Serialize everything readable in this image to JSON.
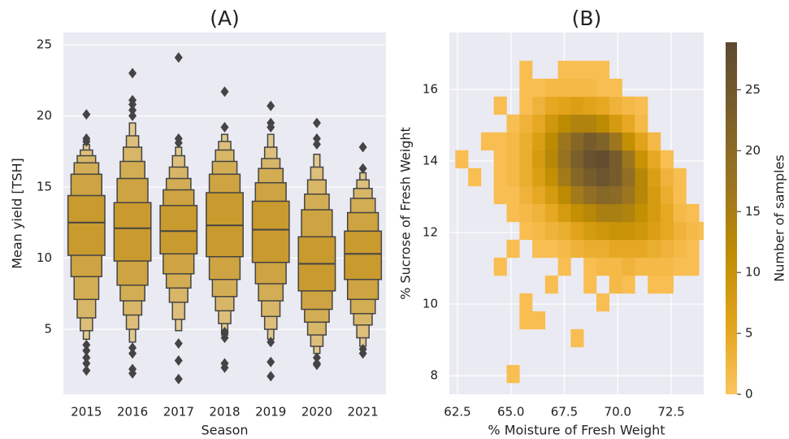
{
  "chart_data": [
    {
      "type": "boxen",
      "title": "(A)",
      "xlabel": "Season",
      "ylabel": "Mean yield [TSH]",
      "categories": [
        "2015",
        "2016",
        "2017",
        "2018",
        "2019",
        "2020",
        "2021"
      ],
      "medians": [
        12.5,
        12.1,
        11.9,
        12.3,
        12.0,
        9.6,
        10.3
      ],
      "boxes": [
        [
          [
            10.2,
            14.4
          ],
          [
            8.7,
            15.9
          ],
          [
            7.1,
            16.7
          ],
          [
            5.8,
            17.2
          ],
          [
            4.9,
            17.6
          ],
          [
            4.3,
            18.0
          ]
        ],
        [
          [
            9.8,
            13.9
          ],
          [
            8.1,
            15.6
          ],
          [
            7.0,
            16.8
          ],
          [
            6.0,
            17.8
          ],
          [
            5.0,
            18.6
          ],
          [
            4.1,
            19.5
          ]
        ],
        [
          [
            10.3,
            13.7
          ],
          [
            8.9,
            14.8
          ],
          [
            7.9,
            15.6
          ],
          [
            6.9,
            16.4
          ],
          [
            5.7,
            17.2
          ],
          [
            4.9,
            17.8
          ]
        ],
        [
          [
            10.1,
            14.6
          ],
          [
            8.5,
            15.9
          ],
          [
            7.3,
            16.8
          ],
          [
            6.3,
            17.6
          ],
          [
            5.4,
            18.2
          ],
          [
            4.6,
            18.7
          ]
        ],
        [
          [
            9.7,
            14.0
          ],
          [
            8.2,
            15.3
          ],
          [
            7.0,
            16.3
          ],
          [
            5.9,
            17.0
          ],
          [
            5.0,
            17.8
          ],
          [
            4.3,
            18.7
          ]
        ],
        [
          [
            7.7,
            11.5
          ],
          [
            6.4,
            13.4
          ],
          [
            5.5,
            14.5
          ],
          [
            4.6,
            15.5
          ],
          [
            3.8,
            16.4
          ],
          [
            3.3,
            17.3
          ]
        ],
        [
          [
            8.5,
            11.9
          ],
          [
            7.1,
            13.2
          ],
          [
            6.1,
            14.2
          ],
          [
            5.3,
            14.9
          ],
          [
            4.4,
            15.5
          ],
          [
            3.8,
            16.0
          ]
        ]
      ],
      "outliers": [
        [
          20.1,
          18.4,
          18.2,
          3.9,
          3.5,
          3.0,
          2.6,
          2.1
        ],
        [
          23.0,
          21.1,
          20.8,
          20.4,
          20.0,
          3.7,
          3.3,
          2.2,
          1.9
        ],
        [
          24.1,
          18.4,
          18.1,
          4.0,
          2.8,
          1.5
        ],
        [
          21.7,
          19.2,
          4.8,
          4.4,
          2.6,
          2.3
        ],
        [
          20.7,
          19.5,
          19.2,
          4.1,
          2.7,
          1.7
        ],
        [
          19.5,
          18.4,
          18.0,
          3.0,
          2.6,
          2.5
        ],
        [
          17.8,
          16.3,
          3.6,
          3.3
        ]
      ],
      "color": "#c99a2e",
      "outlier_color": "#444444",
      "ylim": [
        0.43,
        25.86
      ],
      "yticks": [
        5,
        10,
        15,
        20,
        25
      ],
      "grid": true
    },
    {
      "type": "hist2d",
      "title": "(B)",
      "xlabel": "% Moisture of Fresh Weight",
      "ylabel": "% Sucrose of Fresh Weight",
      "xbins": [
        62.4,
        63.0,
        63.6,
        64.2,
        64.8,
        65.4,
        66.0,
        66.6,
        67.2,
        67.8,
        68.4,
        69.0,
        69.6,
        70.2,
        70.8,
        71.4,
        72.0,
        72.6,
        73.2,
        73.8,
        74.4
      ],
      "ybins": [
        7.8,
        8.3,
        8.8,
        9.3,
        9.8,
        10.3,
        10.8,
        11.3,
        11.8,
        12.3,
        12.8,
        13.3,
        13.8,
        14.3,
        14.8,
        15.3,
        15.8,
        16.3,
        16.8,
        17.3
      ],
      "counts": [
        [
          0,
          0,
          0,
          0,
          1,
          0,
          0,
          0,
          0,
          0,
          0,
          0,
          0,
          0,
          0,
          0,
          0,
          0,
          0,
          0
        ],
        [
          0,
          0,
          0,
          0,
          0,
          0,
          0,
          0,
          0,
          0,
          0,
          0,
          0,
          0,
          0,
          0,
          0,
          0,
          0,
          0
        ],
        [
          0,
          0,
          0,
          0,
          0,
          0,
          0,
          0,
          0,
          1,
          0,
          0,
          0,
          0,
          0,
          0,
          0,
          0,
          0,
          0
        ],
        [
          0,
          0,
          0,
          0,
          0,
          1,
          1,
          0,
          0,
          0,
          0,
          0,
          0,
          0,
          0,
          0,
          0,
          0,
          0,
          0
        ],
        [
          0,
          0,
          0,
          0,
          0,
          1,
          0,
          0,
          0,
          0,
          0,
          1,
          0,
          0,
          0,
          0,
          0,
          0,
          0,
          0
        ],
        [
          0,
          0,
          0,
          0,
          0,
          0,
          0,
          1,
          0,
          0,
          1,
          0,
          2,
          1,
          0,
          1,
          1,
          0,
          0,
          0
        ],
        [
          0,
          0,
          0,
          1,
          0,
          0,
          0,
          0,
          1,
          0,
          1,
          2,
          2,
          3,
          2,
          2,
          2,
          1,
          1,
          0
        ],
        [
          0,
          0,
          0,
          0,
          1,
          0,
          1,
          1,
          2,
          3,
          4,
          4,
          5,
          5,
          5,
          4,
          3,
          2,
          1,
          0
        ],
        [
          0,
          0,
          0,
          0,
          0,
          1,
          2,
          3,
          4,
          6,
          8,
          9,
          10,
          10,
          9,
          7,
          5,
          3,
          2,
          1
        ],
        [
          0,
          0,
          0,
          0,
          1,
          2,
          3,
          5,
          8,
          11,
          13,
          15,
          15,
          14,
          11,
          8,
          5,
          2,
          1,
          0
        ],
        [
          0,
          0,
          0,
          1,
          1,
          3,
          5,
          8,
          12,
          16,
          19,
          21,
          20,
          17,
          13,
          8,
          4,
          1,
          0,
          0
        ],
        [
          0,
          1,
          0,
          1,
          2,
          4,
          7,
          11,
          16,
          21,
          24,
          26,
          24,
          19,
          13,
          7,
          3,
          1,
          0,
          0
        ],
        [
          1,
          0,
          0,
          1,
          2,
          4,
          8,
          13,
          18,
          23,
          27,
          28,
          24,
          17,
          10,
          5,
          1,
          0,
          0,
          0
        ],
        [
          0,
          0,
          1,
          1,
          2,
          4,
          7,
          12,
          17,
          21,
          24,
          22,
          17,
          11,
          6,
          2,
          0,
          0,
          0,
          0
        ],
        [
          0,
          0,
          0,
          0,
          1,
          3,
          5,
          9,
          12,
          14,
          14,
          12,
          8,
          5,
          2,
          0,
          0,
          0,
          0,
          0
        ],
        [
          0,
          0,
          0,
          1,
          0,
          1,
          3,
          5,
          6,
          7,
          6,
          5,
          3,
          2,
          1,
          0,
          0,
          0,
          0,
          0
        ],
        [
          0,
          0,
          0,
          0,
          0,
          1,
          1,
          2,
          2,
          2,
          2,
          1,
          1,
          0,
          0,
          0,
          0,
          0,
          0,
          0
        ],
        [
          0,
          0,
          0,
          0,
          0,
          1,
          0,
          0,
          1,
          1,
          1,
          1,
          0,
          0,
          0,
          0,
          0,
          0,
          0,
          0
        ],
        [
          0,
          0,
          0,
          0,
          0,
          0,
          0,
          0,
          0,
          0,
          0,
          0,
          0,
          0,
          0,
          0,
          0,
          0,
          0,
          0
        ]
      ],
      "xlim": [
        62.12,
        74.02
      ],
      "ylim": [
        7.48,
        17.59
      ],
      "xticks": [
        62.5,
        {
          "value": 65,
          "label": "65.0"
        },
        67.5,
        {
          "value": 70,
          "label": "70.0"
        },
        72.5
      ],
      "yticks": [
        8,
        10,
        12,
        14,
        16
      ],
      "grid": true,
      "colorbar": {
        "label": "Number of samples",
        "lim": [
          0,
          28.9
        ],
        "ticks": [
          0,
          5,
          10,
          15,
          20,
          25
        ],
        "colors": [
          "#fdc45e",
          "#e2a41a",
          "#c08d00",
          "#9a7420",
          "#7a5f2a",
          "#5d4a32"
        ]
      }
    }
  ]
}
